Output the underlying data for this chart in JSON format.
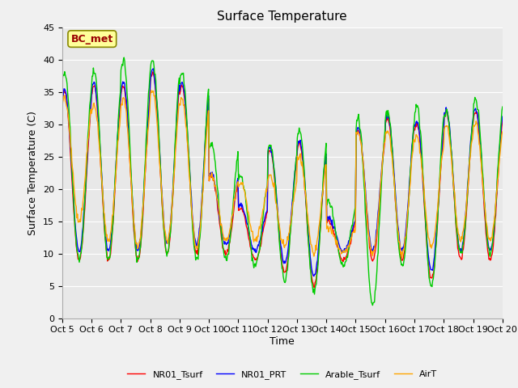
{
  "title": "Surface Temperature",
  "ylabel": "Surface Temperature (C)",
  "xlabel": "Time",
  "annotation": "BC_met",
  "ylim": [
    0,
    45
  ],
  "xtick_labels": [
    "Oct 5",
    "Oct 6",
    "Oct 7",
    "Oct 8",
    "Oct 9",
    "Oct 10",
    "Oct 11",
    "Oct 12",
    "Oct 13",
    "Oct 14",
    "Oct 15",
    "Oct 16",
    "Oct 17",
    "Oct 18",
    "Oct 19",
    "Oct 20"
  ],
  "legend": [
    "NR01_Tsurf",
    "NR01_PRT",
    "Arable_Tsurf",
    "AirT"
  ],
  "colors": {
    "NR01_Tsurf": "#FF0000",
    "NR01_PRT": "#0000FF",
    "Arable_Tsurf": "#00CC00",
    "AirT": "#FFA500"
  },
  "background_color": "#F0F0F0",
  "plot_bg_color": "#E8E8E8",
  "annotation_bg": "#FFFF99",
  "annotation_fg": "#990000",
  "annotation_border": "#888800",
  "title_fontsize": 11,
  "axis_label_fontsize": 9,
  "tick_fontsize": 8,
  "legend_fontsize": 8,
  "linewidth": 1.0
}
